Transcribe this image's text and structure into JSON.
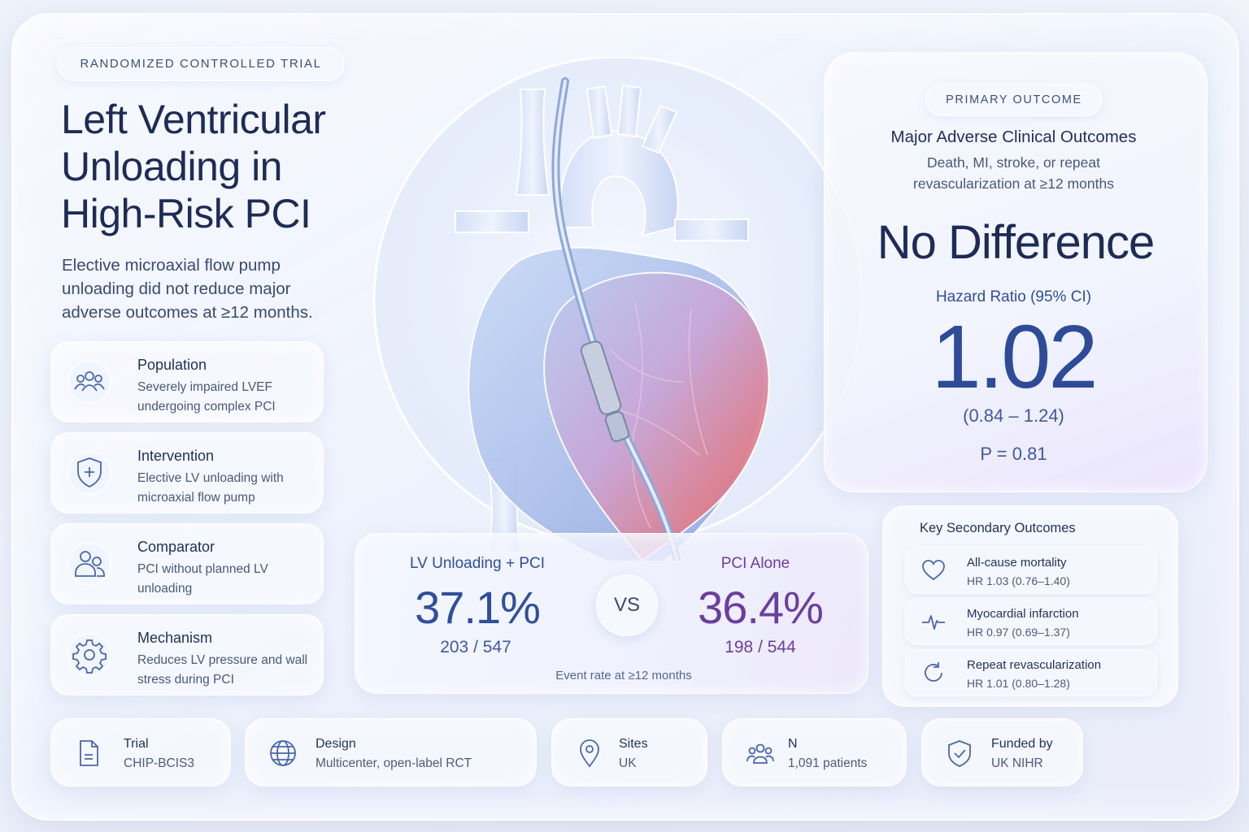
{
  "header": {
    "tag": "RANDOMIZED CONTROLLED TRIAL",
    "title_lines": [
      "Left Ventricular",
      "Unloading in",
      "High-Risk PCI"
    ],
    "summary": "Elective microaxial flow pump unloading did not reduce major adverse outcomes at ≥12 months."
  },
  "cards": [
    {
      "icon": "people-group-icon",
      "title": "Population",
      "desc": "Severely impaired LVEF undergoing complex PCI"
    },
    {
      "icon": "shield-plus-icon",
      "title": "Intervention",
      "desc": "Elective LV unloading with microaxial flow pump"
    },
    {
      "icon": "people-pair-icon",
      "title": "Comparator",
      "desc": "PCI without planned LV unloading"
    },
    {
      "icon": "gear-icon",
      "title": "Mechanism",
      "desc": "Reduces LV pressure and wall stress during PCI"
    }
  ],
  "comparison": {
    "left": {
      "label": "LV Unloading + PCI",
      "rate": "37.1%",
      "counts": "203 / 547"
    },
    "vs": "VS",
    "right": {
      "label": "PCI Alone",
      "rate": "36.4%",
      "counts": "198 / 544"
    },
    "footnote": "Event rate at ≥12 months"
  },
  "primary_outcome": {
    "tag": "PRIMARY OUTCOME",
    "title": "Major Adverse Clinical Outcomes",
    "subtitle_lines": [
      "Death, MI, stroke, or repeat",
      "revascularization at ≥12 months"
    ],
    "result": "No Difference",
    "hr_label": "Hazard Ratio (95% CI)",
    "hr_value": "1.02",
    "ci": "(0.84 – 1.24)",
    "p_value": "P = 0.81"
  },
  "secondary": {
    "title": "Key Secondary Outcomes",
    "items": [
      {
        "icon": "heart-icon",
        "label": "All-cause mortality",
        "value": "HR 1.03 (0.76–1.40)"
      },
      {
        "icon": "pulse-icon",
        "label": "Myocardial infarction",
        "value": "HR 0.97 (0.69–1.37)"
      },
      {
        "icon": "refresh-icon",
        "label": "Repeat revascularization",
        "value": "HR 1.01 (0.80–1.28)"
      }
    ]
  },
  "bottom": [
    {
      "icon": "document-icon",
      "label": "Trial",
      "value": "CHIP-BCIS3"
    },
    {
      "icon": "globe-icon",
      "label": "Design",
      "value": "Multicenter, open-label RCT"
    },
    {
      "icon": "location-pin-icon",
      "label": "Sites",
      "value": "UK"
    },
    {
      "icon": "people-group-icon",
      "label": "N",
      "value": "1,091 patients"
    },
    {
      "icon": "shield-check-icon",
      "label": "Funded by",
      "value": "UK NIHR"
    }
  ],
  "colors": {
    "navy": "#1d2c55",
    "blue_accent": "#2f4f9a",
    "purple_accent": "#6a3f9e",
    "icon_stroke": "#4a67a8"
  }
}
